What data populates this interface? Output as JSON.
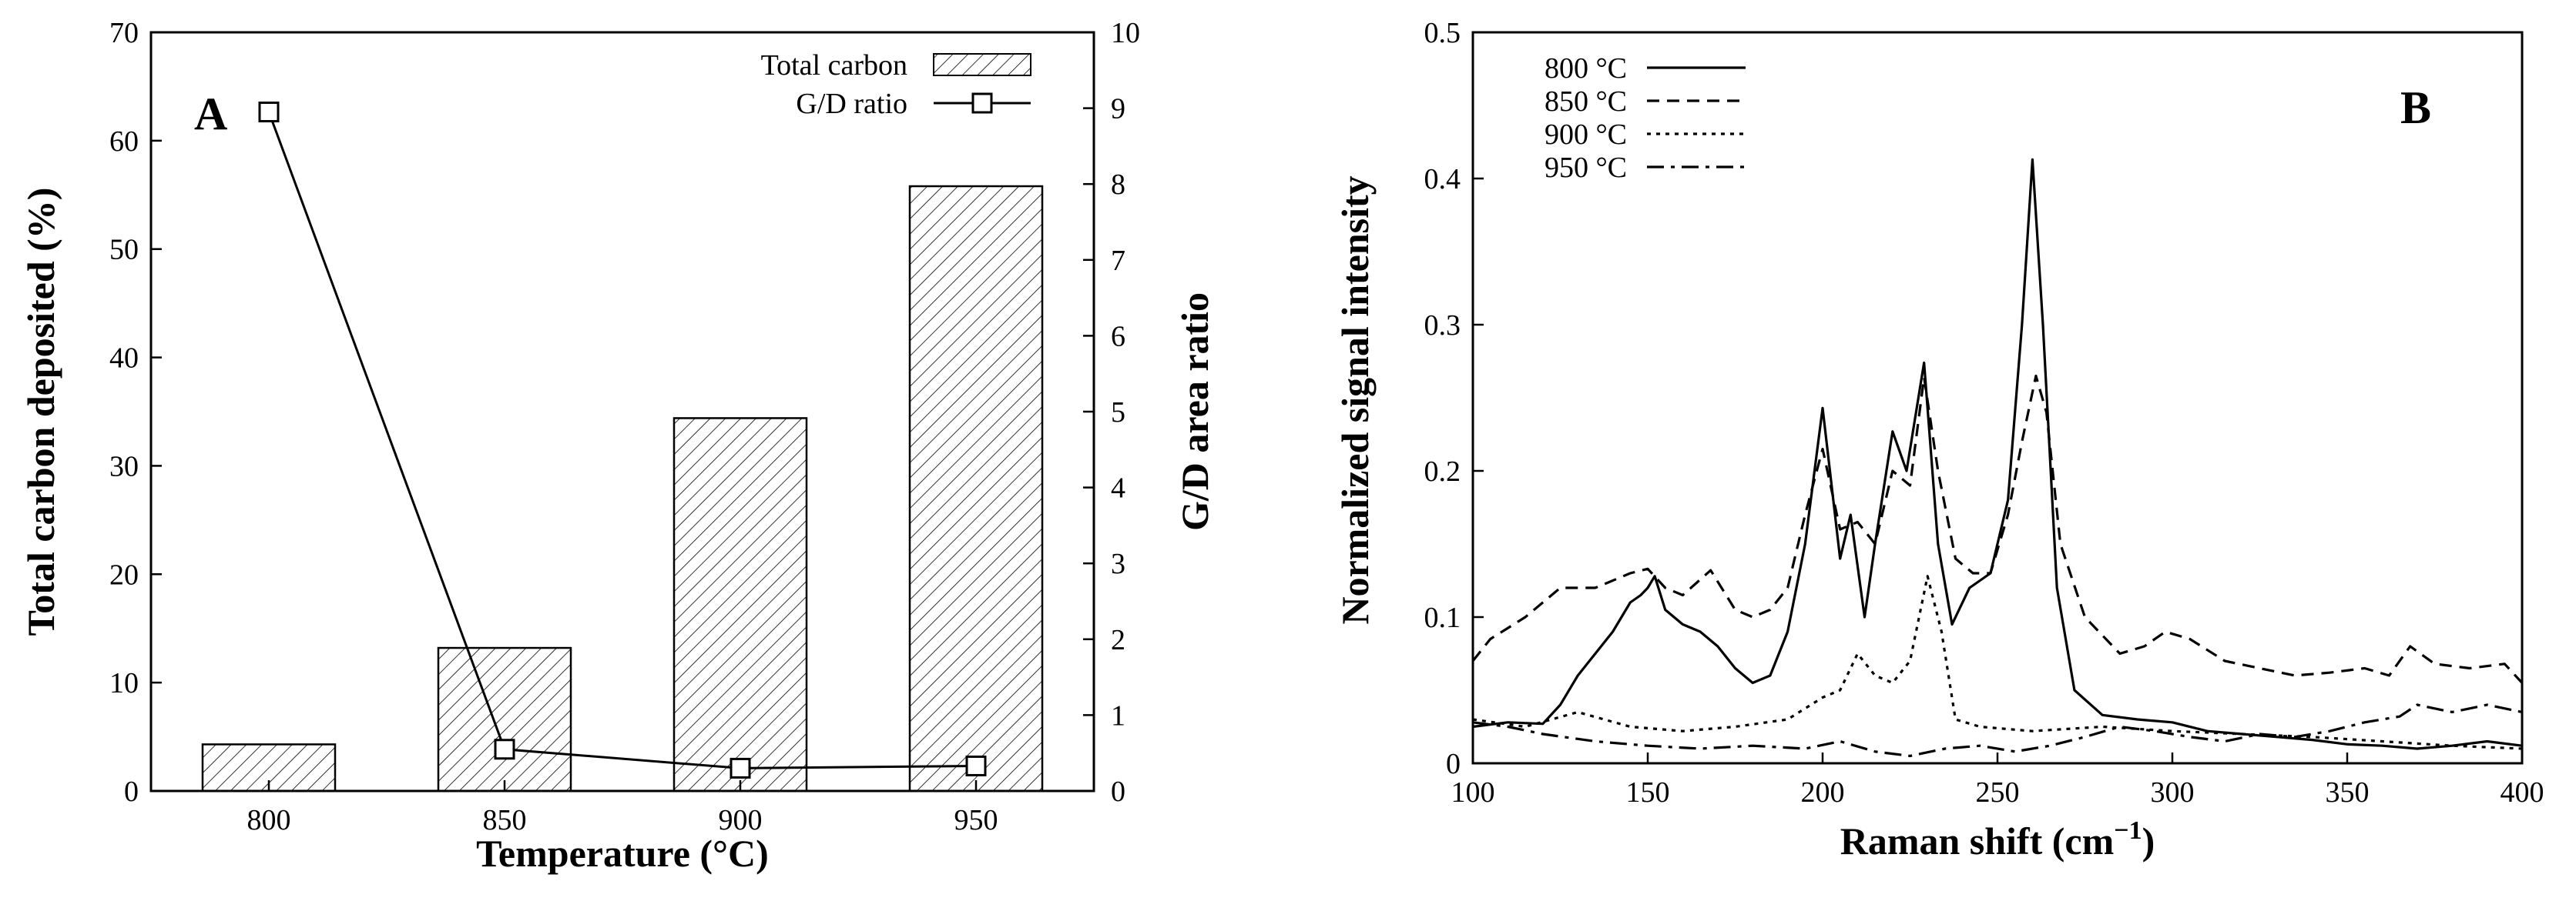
{
  "chart_data": [
    {
      "panel": "A",
      "type": "bar",
      "title": "",
      "xlabel": "Temperature (°C)",
      "ylabel": "Total carbon deposited (%)",
      "y2label": "G/D area ratio",
      "categories": [
        "800",
        "850",
        "900",
        "950"
      ],
      "ylim": [
        0,
        70
      ],
      "y2lim": [
        0,
        10
      ],
      "yticks": [
        0,
        10,
        20,
        30,
        40,
        50,
        60,
        70
      ],
      "y2ticks": [
        0,
        1,
        2,
        3,
        4,
        5,
        6,
        7,
        8,
        9,
        10
      ],
      "series": [
        {
          "name": "Total carbon",
          "type": "bar",
          "axis": "left",
          "values": [
            4.3,
            13.2,
            34.4,
            55.8
          ]
        },
        {
          "name": "G/D ratio",
          "type": "line",
          "axis": "right",
          "marker": "square",
          "values": [
            8.95,
            0.55,
            0.3,
            0.33
          ]
        }
      ],
      "legend_position": "top-right"
    },
    {
      "panel": "B",
      "type": "line",
      "title": "",
      "xlabel": "Raman shift (cm",
      "xlabel_sup": "−1",
      "xlabel_end": ")",
      "ylabel": "Normalized signal intensity",
      "xlim": [
        100,
        400
      ],
      "ylim": [
        0,
        0.5
      ],
      "xticks": [
        100,
        150,
        200,
        250,
        300,
        350,
        400
      ],
      "yticks": [
        0,
        0.1,
        0.2,
        0.3,
        0.4,
        0.5
      ],
      "ytick_labels": [
        "0",
        "0.1",
        "0.2",
        "0.3",
        "0.4",
        "0.5"
      ],
      "legend_position": "top-left",
      "series": [
        {
          "name": "800 °C",
          "dash": "solid",
          "points": [
            [
              100,
              0.025
            ],
            [
              110,
              0.028
            ],
            [
              120,
              0.027
            ],
            [
              125,
              0.04
            ],
            [
              130,
              0.06
            ],
            [
              135,
              0.075
            ],
            [
              140,
              0.09
            ],
            [
              145,
              0.11
            ],
            [
              148,
              0.115
            ],
            [
              150,
              0.12
            ],
            [
              152,
              0.128
            ],
            [
              155,
              0.105
            ],
            [
              160,
              0.095
            ],
            [
              165,
              0.09
            ],
            [
              170,
              0.08
            ],
            [
              175,
              0.065
            ],
            [
              180,
              0.055
            ],
            [
              185,
              0.06
            ],
            [
              190,
              0.09
            ],
            [
              195,
              0.15
            ],
            [
              200,
              0.243
            ],
            [
              205,
              0.14
            ],
            [
              208,
              0.17
            ],
            [
              212,
              0.1
            ],
            [
              215,
              0.15
            ],
            [
              220,
              0.227
            ],
            [
              224,
              0.2
            ],
            [
              229,
              0.274
            ],
            [
              233,
              0.15
            ],
            [
              237,
              0.095
            ],
            [
              242,
              0.12
            ],
            [
              248,
              0.13
            ],
            [
              253,
              0.18
            ],
            [
              257,
              0.3
            ],
            [
              260,
              0.413
            ],
            [
              263,
              0.3
            ],
            [
              267,
              0.12
            ],
            [
              272,
              0.05
            ],
            [
              280,
              0.033
            ],
            [
              290,
              0.03
            ],
            [
              300,
              0.028
            ],
            [
              310,
              0.022
            ],
            [
              320,
              0.02
            ],
            [
              330,
              0.018
            ],
            [
              340,
              0.016
            ],
            [
              350,
              0.013
            ],
            [
              360,
              0.012
            ],
            [
              370,
              0.01
            ],
            [
              380,
              0.012
            ],
            [
              390,
              0.015
            ],
            [
              400,
              0.012
            ]
          ]
        },
        {
          "name": "850 °C",
          "dash": "dashed",
          "points": [
            [
              100,
              0.07
            ],
            [
              105,
              0.085
            ],
            [
              115,
              0.1
            ],
            [
              125,
              0.12
            ],
            [
              135,
              0.12
            ],
            [
              145,
              0.13
            ],
            [
              150,
              0.133
            ],
            [
              155,
              0.12
            ],
            [
              160,
              0.115
            ],
            [
              168,
              0.132
            ],
            [
              175,
              0.105
            ],
            [
              180,
              0.1
            ],
            [
              185,
              0.105
            ],
            [
              190,
              0.12
            ],
            [
              195,
              0.17
            ],
            [
              200,
              0.215
            ],
            [
              205,
              0.16
            ],
            [
              210,
              0.165
            ],
            [
              215,
              0.15
            ],
            [
              220,
              0.2
            ],
            [
              225,
              0.19
            ],
            [
              229,
              0.264
            ],
            [
              233,
              0.2
            ],
            [
              238,
              0.14
            ],
            [
              243,
              0.13
            ],
            [
              248,
              0.13
            ],
            [
              253,
              0.17
            ],
            [
              257,
              0.22
            ],
            [
              261,
              0.265
            ],
            [
              264,
              0.24
            ],
            [
              268,
              0.15
            ],
            [
              275,
              0.1
            ],
            [
              285,
              0.075
            ],
            [
              292,
              0.08
            ],
            [
              298,
              0.09
            ],
            [
              305,
              0.085
            ],
            [
              315,
              0.07
            ],
            [
              325,
              0.065
            ],
            [
              335,
              0.06
            ],
            [
              345,
              0.062
            ],
            [
              355,
              0.065
            ],
            [
              362,
              0.06
            ],
            [
              368,
              0.08
            ],
            [
              375,
              0.068
            ],
            [
              385,
              0.065
            ],
            [
              395,
              0.068
            ],
            [
              400,
              0.055
            ]
          ]
        },
        {
          "name": "900 °C",
          "dash": "dotted",
          "points": [
            [
              100,
              0.03
            ],
            [
              115,
              0.025
            ],
            [
              130,
              0.035
            ],
            [
              145,
              0.025
            ],
            [
              160,
              0.022
            ],
            [
              175,
              0.025
            ],
            [
              190,
              0.03
            ],
            [
              200,
              0.045
            ],
            [
              205,
              0.05
            ],
            [
              210,
              0.075
            ],
            [
              215,
              0.06
            ],
            [
              220,
              0.055
            ],
            [
              225,
              0.07
            ],
            [
              230,
              0.128
            ],
            [
              234,
              0.09
            ],
            [
              238,
              0.03
            ],
            [
              245,
              0.025
            ],
            [
              260,
              0.022
            ],
            [
              280,
              0.025
            ],
            [
              300,
              0.022
            ],
            [
              320,
              0.02
            ],
            [
              340,
              0.018
            ],
            [
              360,
              0.015
            ],
            [
              380,
              0.012
            ],
            [
              400,
              0.01
            ]
          ]
        },
        {
          "name": "950 °C",
          "dash": "dashdot",
          "points": [
            [
              100,
              0.028
            ],
            [
              110,
              0.025
            ],
            [
              120,
              0.02
            ],
            [
              135,
              0.015
            ],
            [
              150,
              0.012
            ],
            [
              165,
              0.01
            ],
            [
              180,
              0.012
            ],
            [
              195,
              0.01
            ],
            [
              205,
              0.015
            ],
            [
              215,
              0.008
            ],
            [
              225,
              0.005
            ],
            [
              235,
              0.01
            ],
            [
              245,
              0.012
            ],
            [
              255,
              0.008
            ],
            [
              265,
              0.012
            ],
            [
              275,
              0.018
            ],
            [
              285,
              0.025
            ],
            [
              295,
              0.022
            ],
            [
              305,
              0.018
            ],
            [
              315,
              0.015
            ],
            [
              325,
              0.02
            ],
            [
              335,
              0.018
            ],
            [
              345,
              0.022
            ],
            [
              355,
              0.028
            ],
            [
              365,
              0.032
            ],
            [
              370,
              0.04
            ],
            [
              380,
              0.035
            ],
            [
              390,
              0.04
            ],
            [
              400,
              0.035
            ]
          ]
        }
      ]
    }
  ]
}
